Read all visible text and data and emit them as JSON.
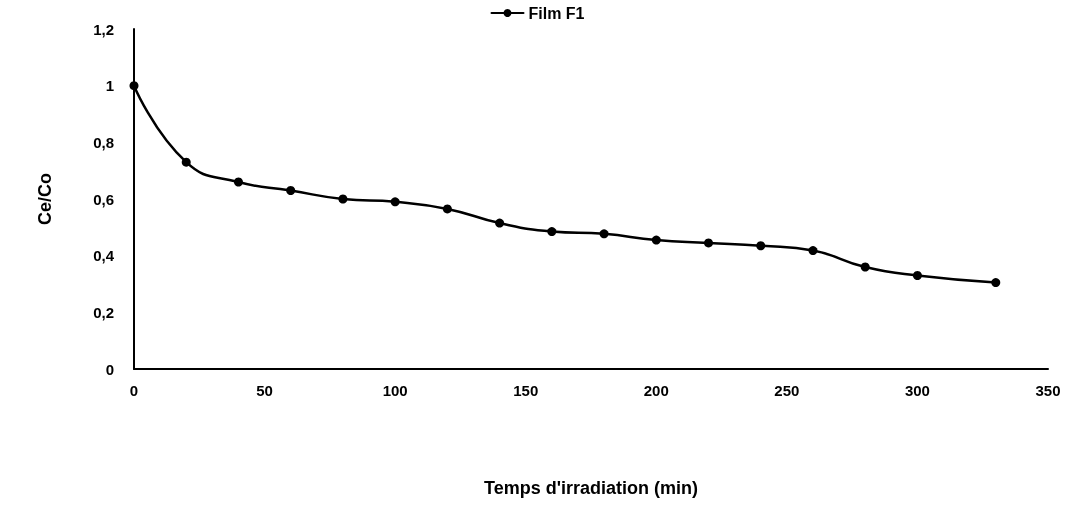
{
  "chart_data": {
    "type": "line",
    "xlabel": "Temps d'irradiation (min)",
    "ylabel": "Ce/Co",
    "x": [
      0,
      20,
      40,
      60,
      80,
      100,
      120,
      140,
      160,
      180,
      200,
      220,
      240,
      260,
      280,
      300,
      330
    ],
    "series": [
      {
        "name": "Film F1",
        "color": "#000000",
        "values": [
          1,
          0.73,
          0.66,
          0.63,
          0.6,
          0.59,
          0.565,
          0.515,
          0.485,
          0.477,
          0.455,
          0.445,
          0.435,
          0.418,
          0.36,
          0.33,
          0.305
        ]
      }
    ],
    "xlim": [
      0,
      350
    ],
    "xticks": [
      0,
      50,
      100,
      150,
      200,
      250,
      300,
      350
    ],
    "ylim": [
      0,
      1.2
    ],
    "yticks": [
      0,
      {
        "value": 0.2,
        "label": "0,2"
      },
      {
        "value": 0.4,
        "label": "0,4"
      },
      {
        "value": 0.6,
        "label": "0,6"
      },
      {
        "value": 0.8,
        "label": "0,8"
      },
      1,
      {
        "value": 1.2,
        "label": "1,2"
      }
    ],
    "grid": false,
    "legend": "top",
    "marker": "circle",
    "line_style": "solid"
  }
}
